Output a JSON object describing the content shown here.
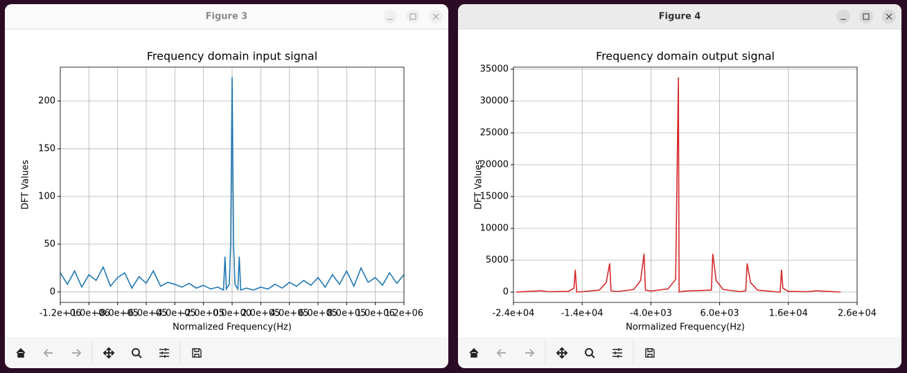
{
  "windows": [
    {
      "title": "Figure 3"
    },
    {
      "title": "Figure 4"
    }
  ],
  "chart_data": [
    {
      "type": "line",
      "title": "Frequency domain input signal",
      "xlabel": "Normalized Frequency(Hz)",
      "ylabel": "DFT Values",
      "color": "#1f77b4",
      "grid": true,
      "x": [
        -1200000,
        -1150000,
        -1100000,
        -1050000,
        -1000000,
        -950000,
        -900000,
        -850000,
        -800000,
        -750000,
        -700000,
        -650000,
        -600000,
        -550000,
        -500000,
        -450000,
        -400000,
        -350000,
        -300000,
        -250000,
        -200000,
        -150000,
        -100000,
        -60000,
        -50000,
        -40000,
        -20000,
        -10000,
        0,
        10000,
        20000,
        40000,
        50000,
        60000,
        100000,
        150000,
        200000,
        250000,
        300000,
        350000,
        400000,
        450000,
        500000,
        550000,
        600000,
        650000,
        700000,
        750000,
        800000,
        850000,
        900000,
        950000,
        1000000,
        1050000,
        1100000,
        1150000,
        1200000
      ],
      "values": [
        20,
        8,
        22,
        5,
        18,
        12,
        26,
        6,
        15,
        20,
        4,
        16,
        9,
        22,
        6,
        10,
        8,
        5,
        9,
        4,
        7,
        3,
        5,
        2,
        37,
        3,
        8,
        50,
        225,
        50,
        8,
        3,
        37,
        2,
        4,
        2,
        5,
        3,
        8,
        4,
        10,
        6,
        12,
        7,
        15,
        5,
        18,
        8,
        22,
        6,
        25,
        10,
        15,
        7,
        20,
        9,
        18
      ],
      "xlim": [
        -1200000,
        1200000
      ],
      "xticks": [
        {
          "value": -1200000,
          "label": "-1.2e+06"
        },
        {
          "value": -1000000,
          "label": "-1.0e+06"
        },
        {
          "value": -800000,
          "label": "-8.0e+05"
        },
        {
          "value": -600000,
          "label": "-6.0e+05"
        },
        {
          "value": -400000,
          "label": "-4.0e+05"
        },
        {
          "value": -200000,
          "label": "-2.0e+05"
        },
        {
          "value": 0,
          "label": "0.0e+00"
        },
        {
          "value": 200000,
          "label": "2.0e+05"
        },
        {
          "value": 400000,
          "label": "4.0e+05"
        },
        {
          "value": 600000,
          "label": "6.0e+05"
        },
        {
          "value": 800000,
          "label": "8.0e+05"
        },
        {
          "value": 1000000,
          "label": "1.0e+06"
        },
        {
          "value": 1200000,
          "label": "1.2e+06"
        }
      ],
      "ylim": [
        -11,
        235.5
      ],
      "yticks": [
        0,
        50,
        100,
        150,
        200
      ]
    },
    {
      "type": "line",
      "title": "Frequency domain output signal",
      "xlabel": "Normalized Frequency(Hz)",
      "ylabel": "DFT Values",
      "color": "#d62728",
      "grid": true,
      "x": [
        -23600,
        -20000,
        -19000,
        -16000,
        -15200,
        -15000,
        -14800,
        -14000,
        -11500,
        -10500,
        -10000,
        -9800,
        -9000,
        -6500,
        -5500,
        -5000,
        -4800,
        -4000,
        -1500,
        -400,
        0,
        100,
        1000,
        4800,
        5000,
        5500,
        6500,
        9000,
        9800,
        10000,
        10500,
        11500,
        14000,
        14800,
        15000,
        15200,
        16000,
        19000,
        20000,
        23600
      ],
      "values": [
        0,
        200,
        50,
        100,
        600,
        3500,
        0,
        50,
        300,
        1500,
        4500,
        200,
        50,
        400,
        1800,
        6000,
        300,
        150,
        500,
        2000,
        33700,
        0,
        150,
        300,
        6000,
        1800,
        400,
        50,
        200,
        4500,
        1500,
        300,
        50,
        0,
        3500,
        600,
        100,
        50,
        200,
        0
      ],
      "xlim": [
        -24000,
        26000
      ],
      "xticks": [
        {
          "value": -24000,
          "label": "-2.4e+04"
        },
        {
          "value": -14000,
          "label": "-1.4e+04"
        },
        {
          "value": -4000,
          "label": "-4.0e+03"
        },
        {
          "value": 6000,
          "label": "6.0e+03"
        },
        {
          "value": 16000,
          "label": "1.6e+04"
        },
        {
          "value": 26000,
          "label": "2.6e+04"
        }
      ],
      "ylim": [
        -1630,
        35330
      ],
      "yticks": [
        0,
        5000,
        10000,
        15000,
        20000,
        25000,
        30000,
        35000
      ]
    }
  ]
}
